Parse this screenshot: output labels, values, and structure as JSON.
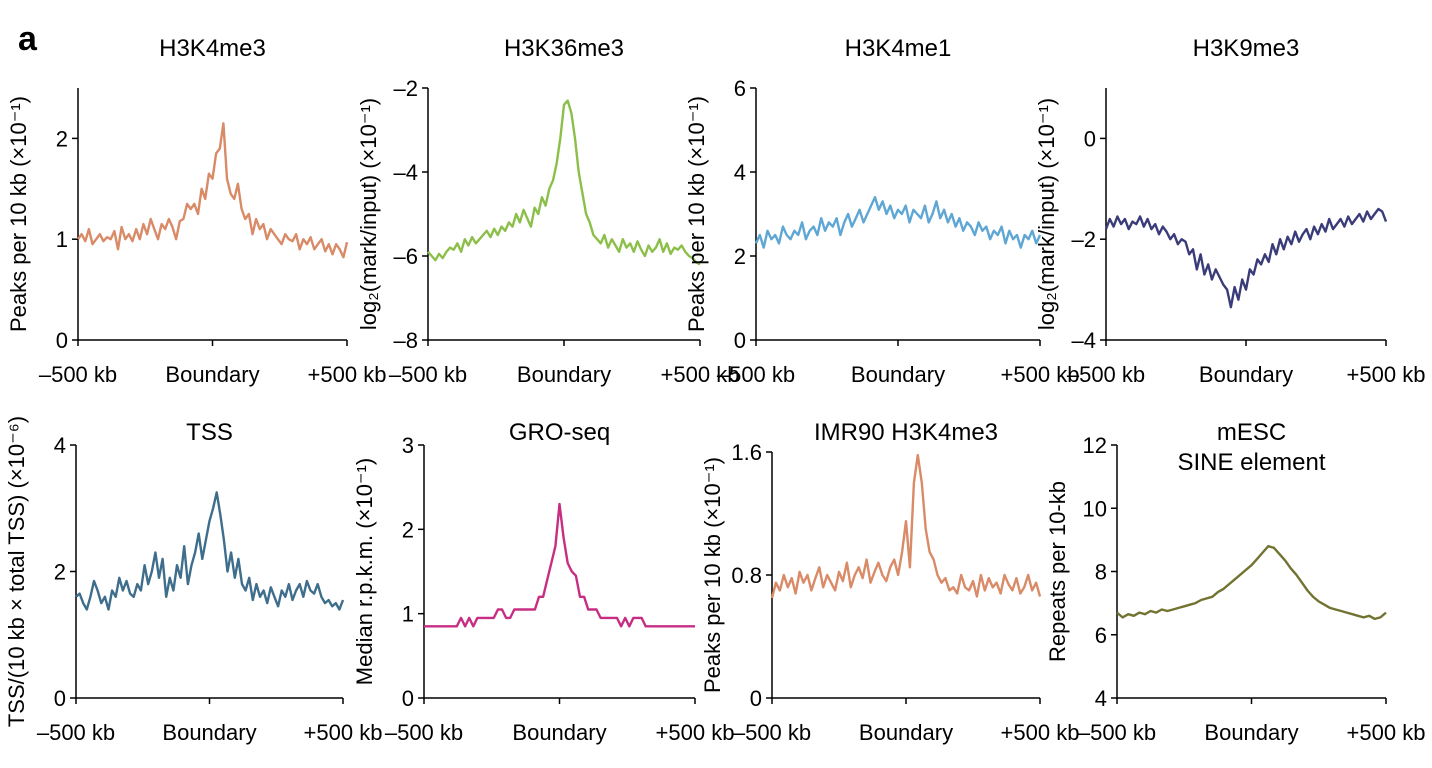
{
  "panel_label": "a",
  "chart_data": [
    {
      "type": "line",
      "title": "H3K4me3",
      "ylabel": "Peaks per 10 kb (×10⁻¹)",
      "xticks": [
        "–500 kb",
        "Boundary",
        "+500 kb"
      ],
      "ylim": [
        0,
        2.5
      ],
      "yticks": [
        0,
        1,
        2
      ],
      "color": "#d98a66",
      "series": [
        {
          "values": [
            1.0,
            1.05,
            0.98,
            1.1,
            0.95,
            1.0,
            1.05,
            0.98,
            1.02,
            1.0,
            1.08,
            0.9,
            1.12,
            1.0,
            1.05,
            0.98,
            1.1,
            1.0,
            1.15,
            1.05,
            1.2,
            1.1,
            1.0,
            1.15,
            1.1,
            1.2,
            1.12,
            1.0,
            1.18,
            1.2,
            1.35,
            1.3,
            1.35,
            1.25,
            1.5,
            1.4,
            1.65,
            1.6,
            1.85,
            1.9,
            2.15,
            1.6,
            1.45,
            1.4,
            1.55,
            1.3,
            1.2,
            1.25,
            1.05,
            1.2,
            1.1,
            1.15,
            1.0,
            1.1,
            1.05,
            1.0,
            0.95,
            1.05,
            1.0,
            0.98,
            1.05,
            0.9,
            1.0,
            0.95,
            1.02,
            0.9,
            0.95,
            1.0,
            0.88,
            0.95,
            0.85,
            0.95,
            0.9,
            0.82,
            0.97
          ]
        }
      ]
    },
    {
      "type": "line",
      "title": "H3K36me3",
      "ylabel": "log₂(mark/input) (×10⁻¹)",
      "xticks": [
        "–500 kb",
        "Boundary",
        "+500 kb"
      ],
      "ylim": [
        -8,
        -2
      ],
      "yticks": [
        -8,
        -6,
        -4,
        -2
      ],
      "color": "#8cbf4a",
      "series": [
        {
          "values": [
            -5.9,
            -6.0,
            -6.1,
            -5.95,
            -6.05,
            -5.9,
            -5.8,
            -5.85,
            -5.7,
            -5.9,
            -5.6,
            -5.75,
            -5.55,
            -5.7,
            -5.6,
            -5.5,
            -5.4,
            -5.55,
            -5.35,
            -5.5,
            -5.3,
            -5.4,
            -5.2,
            -5.3,
            -5.0,
            -5.2,
            -4.9,
            -5.1,
            -5.3,
            -4.85,
            -5.0,
            -4.6,
            -4.8,
            -4.4,
            -4.2,
            -3.8,
            -3.2,
            -2.4,
            -2.3,
            -2.6,
            -3.2,
            -4.0,
            -4.5,
            -5.0,
            -5.2,
            -5.5,
            -5.6,
            -5.7,
            -5.5,
            -5.8,
            -5.6,
            -5.75,
            -5.9,
            -5.6,
            -5.8,
            -5.7,
            -5.9,
            -5.65,
            -5.85,
            -6.0,
            -5.75,
            -5.9,
            -5.8,
            -5.6,
            -5.9,
            -5.7,
            -5.95,
            -5.8,
            -5.85,
            -5.75,
            -5.9,
            -6.0,
            -6.05,
            -6.15,
            -6.2
          ]
        }
      ]
    },
    {
      "type": "line",
      "title": "H3K4me1",
      "ylabel": "Peaks per 10 kb (×10⁻¹)",
      "xticks": [
        "–500 kb",
        "Boundary",
        "+500 kb"
      ],
      "ylim": [
        0,
        6
      ],
      "yticks": [
        0,
        2,
        4,
        6
      ],
      "color": "#5ea6d4",
      "series": [
        {
          "values": [
            2.3,
            2.5,
            2.2,
            2.6,
            2.4,
            2.5,
            2.3,
            2.7,
            2.5,
            2.4,
            2.6,
            2.5,
            2.8,
            2.4,
            2.6,
            2.7,
            2.5,
            2.9,
            2.6,
            2.8,
            2.7,
            2.9,
            2.5,
            2.8,
            3.0,
            2.7,
            2.9,
            3.1,
            2.8,
            3.0,
            3.2,
            3.4,
            3.1,
            3.3,
            3.0,
            3.2,
            2.9,
            3.1,
            3.0,
            3.2,
            2.8,
            3.1,
            3.0,
            2.9,
            3.2,
            2.8,
            3.0,
            3.3,
            2.9,
            3.1,
            2.8,
            3.0,
            2.7,
            2.9,
            2.6,
            2.8,
            2.7,
            2.5,
            2.8,
            2.6,
            2.7,
            2.4,
            2.6,
            2.5,
            2.7,
            2.3,
            2.6,
            2.4,
            2.5,
            2.2,
            2.5,
            2.4,
            2.6,
            2.3,
            2.5
          ]
        }
      ]
    },
    {
      "type": "line",
      "title": "H3K9me3",
      "ylabel": "log₂(mark/input) (×10⁻¹)",
      "xticks": [
        "–500 kb",
        "Boundary",
        "+500 kb"
      ],
      "ylim": [
        -4,
        1
      ],
      "yticks": [
        -4,
        -2,
        0
      ],
      "color": "#3a3c7a",
      "series": [
        {
          "values": [
            -1.8,
            -1.6,
            -1.75,
            -1.55,
            -1.7,
            -1.6,
            -1.8,
            -1.65,
            -1.7,
            -1.55,
            -1.75,
            -1.6,
            -1.8,
            -1.7,
            -1.9,
            -1.75,
            -1.85,
            -2.0,
            -1.9,
            -2.1,
            -2.0,
            -2.05,
            -2.3,
            -2.2,
            -2.6,
            -2.3,
            -2.7,
            -2.5,
            -2.8,
            -2.6,
            -2.75,
            -2.9,
            -3.0,
            -3.35,
            -2.95,
            -3.2,
            -2.8,
            -3.0,
            -2.6,
            -2.7,
            -2.4,
            -2.5,
            -2.3,
            -2.45,
            -2.1,
            -2.3,
            -2.0,
            -2.2,
            -1.95,
            -2.1,
            -1.85,
            -2.05,
            -1.9,
            -1.8,
            -2.0,
            -1.75,
            -1.9,
            -1.7,
            -1.85,
            -1.6,
            -1.8,
            -1.7,
            -1.6,
            -1.75,
            -1.55,
            -1.7,
            -1.6,
            -1.5,
            -1.65,
            -1.45,
            -1.6,
            -1.5,
            -1.4,
            -1.45,
            -1.65
          ]
        }
      ]
    },
    {
      "type": "line",
      "title": "TSS",
      "ylabel": "TSS/(10 kb × total TSS) (×10⁻⁶)",
      "xticks": [
        "–500 kb",
        "Boundary",
        "+500 kb"
      ],
      "ylim": [
        0,
        4
      ],
      "yticks": [
        0,
        2,
        4
      ],
      "color": "#3e6e8c",
      "series": [
        {
          "values": [
            1.6,
            1.65,
            1.5,
            1.4,
            1.6,
            1.85,
            1.7,
            1.5,
            1.6,
            1.4,
            1.7,
            1.6,
            1.9,
            1.7,
            1.85,
            1.65,
            1.6,
            1.8,
            1.7,
            2.1,
            1.8,
            2.0,
            2.3,
            1.9,
            2.2,
            1.6,
            1.9,
            1.7,
            2.1,
            1.9,
            2.4,
            1.8,
            2.1,
            2.3,
            2.6,
            2.2,
            2.5,
            2.8,
            3.0,
            3.25,
            2.9,
            2.5,
            2.0,
            2.3,
            1.9,
            2.2,
            1.8,
            1.7,
            1.9,
            1.55,
            1.8,
            1.6,
            1.7,
            1.5,
            1.75,
            1.6,
            1.45,
            1.7,
            1.6,
            1.8,
            1.55,
            1.7,
            1.8,
            1.6,
            1.85,
            1.7,
            1.65,
            1.8,
            1.6,
            1.5,
            1.55,
            1.45,
            1.5,
            1.4,
            1.55
          ]
        }
      ]
    },
    {
      "type": "line",
      "title": "GRO-seq",
      "ylabel": "Median r.p.k.m. (×10⁻¹)",
      "xticks": [
        "–500 kb",
        "Boundary",
        "+500 kb"
      ],
      "ylim": [
        0,
        3
      ],
      "yticks": [
        0,
        1,
        2,
        3
      ],
      "color": "#c72e83",
      "series": [
        {
          "values": [
            0.85,
            0.85,
            0.85,
            0.85,
            0.85,
            0.85,
            0.85,
            0.85,
            0.85,
            0.95,
            0.85,
            0.95,
            0.85,
            0.95,
            0.95,
            0.95,
            0.95,
            0.95,
            1.05,
            1.05,
            0.95,
            0.95,
            1.05,
            1.05,
            1.05,
            1.05,
            1.05,
            1.05,
            1.2,
            1.2,
            1.4,
            1.6,
            1.8,
            2.3,
            1.9,
            1.6,
            1.5,
            1.45,
            1.2,
            1.2,
            1.05,
            1.05,
            1.05,
            0.95,
            0.95,
            0.95,
            0.95,
            0.95,
            0.85,
            0.95,
            0.85,
            0.95,
            0.95,
            0.95,
            0.85,
            0.85,
            0.85,
            0.85,
            0.85,
            0.85,
            0.85,
            0.85,
            0.85,
            0.85,
            0.85,
            0.85,
            0.85
          ]
        }
      ]
    },
    {
      "type": "line",
      "title": "IMR90 H3K4me3",
      "ylabel": "Peaks per 10 kb (×10⁻¹)",
      "xticks": [
        "–500 kb",
        "Boundary",
        "+500 kb"
      ],
      "ylim": [
        0,
        1.6
      ],
      "yticks": [
        "0",
        "0.8",
        "1.6"
      ],
      "yticks_num": [
        0,
        0.8,
        1.6
      ],
      "color": "#d98a66",
      "series": [
        {
          "values": [
            0.65,
            0.75,
            0.7,
            0.8,
            0.72,
            0.78,
            0.68,
            0.82,
            0.75,
            0.8,
            0.7,
            0.78,
            0.85,
            0.72,
            0.8,
            0.75,
            0.7,
            0.82,
            0.76,
            0.88,
            0.72,
            0.8,
            0.85,
            0.78,
            0.9,
            0.75,
            0.82,
            0.88,
            0.8,
            0.76,
            0.85,
            0.9,
            0.8,
            0.95,
            1.15,
            0.85,
            1.4,
            1.58,
            1.4,
            1.1,
            0.95,
            0.9,
            0.8,
            0.75,
            0.78,
            0.7,
            0.72,
            0.68,
            0.8,
            0.72,
            0.7,
            0.76,
            0.66,
            0.8,
            0.7,
            0.78,
            0.72,
            0.75,
            0.68,
            0.8,
            0.74,
            0.7,
            0.78,
            0.68,
            0.72,
            0.8,
            0.7,
            0.75,
            0.66
          ]
        }
      ]
    },
    {
      "type": "line",
      "title": "mESC",
      "subtitle": "SINE element",
      "ylabel": "Repeats per 10-kb",
      "xticks": [
        "–500 kb",
        "Boundary",
        "+500 kb"
      ],
      "ylim": [
        4,
        12
      ],
      "yticks": [
        4,
        6,
        8,
        10,
        12
      ],
      "color": "#727331",
      "series": [
        {
          "values": [
            6.7,
            6.55,
            6.65,
            6.6,
            6.7,
            6.65,
            6.75,
            6.7,
            6.8,
            6.75,
            6.8,
            6.85,
            6.9,
            6.95,
            7.0,
            7.1,
            7.15,
            7.2,
            7.35,
            7.45,
            7.6,
            7.75,
            7.9,
            8.05,
            8.2,
            8.4,
            8.6,
            8.8,
            8.75,
            8.55,
            8.35,
            8.1,
            7.9,
            7.65,
            7.4,
            7.2,
            7.05,
            6.95,
            6.85,
            6.8,
            6.75,
            6.7,
            6.65,
            6.6,
            6.55,
            6.6,
            6.5,
            6.55,
            6.7
          ]
        }
      ]
    }
  ]
}
